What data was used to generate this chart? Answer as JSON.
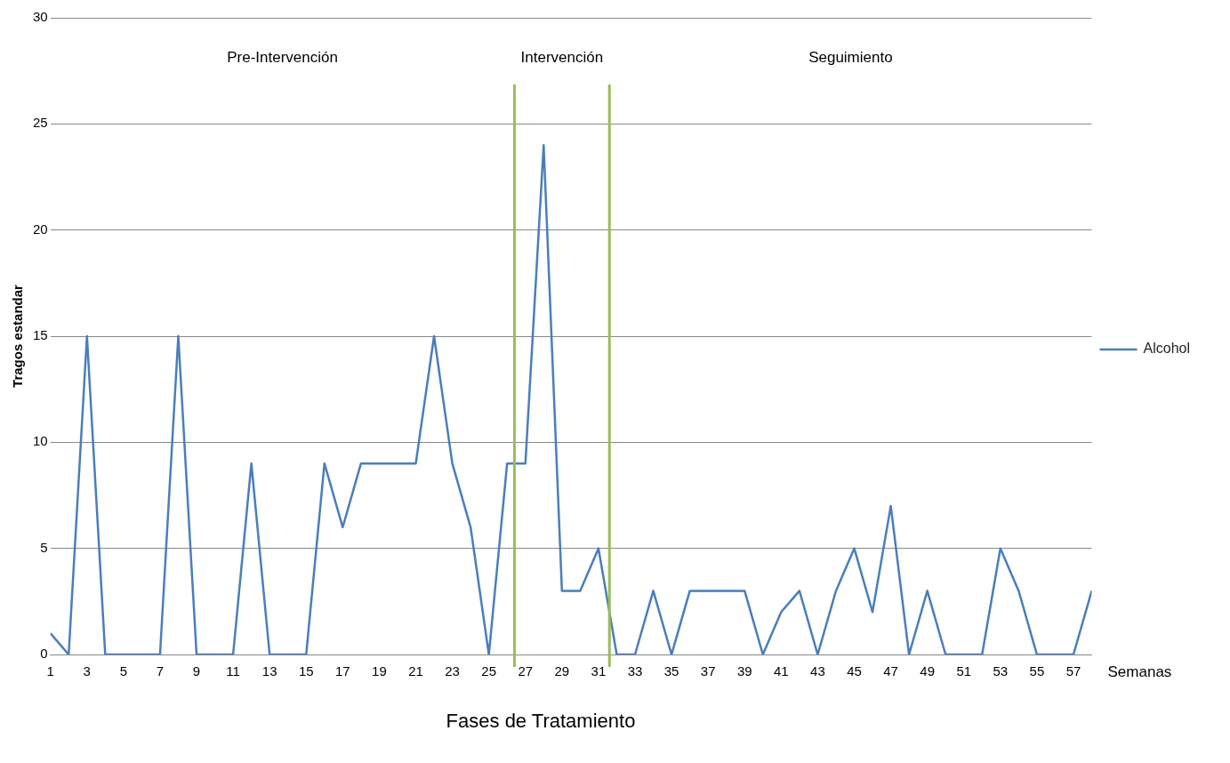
{
  "chart_data": {
    "type": "line",
    "x": [
      1,
      2,
      3,
      4,
      5,
      6,
      7,
      8,
      9,
      10,
      11,
      12,
      13,
      14,
      15,
      16,
      17,
      18,
      19,
      20,
      21,
      22,
      23,
      24,
      25,
      26,
      27,
      28,
      29,
      30,
      31,
      32,
      33,
      34,
      35,
      36,
      37,
      38,
      39,
      40,
      41,
      42,
      43,
      44,
      45,
      46,
      47,
      48,
      49,
      50,
      51,
      52,
      53,
      54,
      55,
      56,
      57,
      58
    ],
    "series": [
      {
        "name": "Alcohol",
        "color": "#4a7ebb",
        "values": [
          1,
          0,
          15,
          0,
          0,
          0,
          0,
          15,
          0,
          0,
          0,
          9,
          0,
          0,
          0,
          9,
          6,
          9,
          9,
          9,
          9,
          15,
          9,
          6,
          0,
          9,
          9,
          24,
          3,
          3,
          5,
          0,
          0,
          3,
          0,
          3,
          3,
          3,
          3,
          0,
          2,
          3,
          0,
          3,
          5,
          2,
          7,
          0,
          3,
          0,
          0,
          0,
          5,
          3,
          0,
          0,
          0,
          3
        ]
      }
    ],
    "xlim": [
      1,
      58
    ],
    "xticks": [
      1,
      3,
      5,
      7,
      9,
      11,
      13,
      15,
      17,
      19,
      21,
      23,
      25,
      27,
      29,
      31,
      33,
      35,
      37,
      39,
      41,
      43,
      45,
      47,
      49,
      51,
      53,
      55,
      57
    ],
    "ylim": [
      0,
      30
    ],
    "yticks": [
      0,
      5,
      10,
      15,
      20,
      25,
      30
    ],
    "xlabel": "Semanas",
    "ylabel": "Tragos estandar",
    "grid": "y",
    "legend": "right",
    "marker": "none",
    "line_style": "solid",
    "ref_lines": [
      {
        "axis": "x",
        "value": 26.4,
        "color": "#9bbb59"
      },
      {
        "axis": "x",
        "value": 31.6,
        "color": "#9bbb59"
      }
    ],
    "annotations": [
      "Pre-Intervención",
      "Intervención",
      "Seguimiento",
      "Fases de Tratamiento"
    ]
  }
}
